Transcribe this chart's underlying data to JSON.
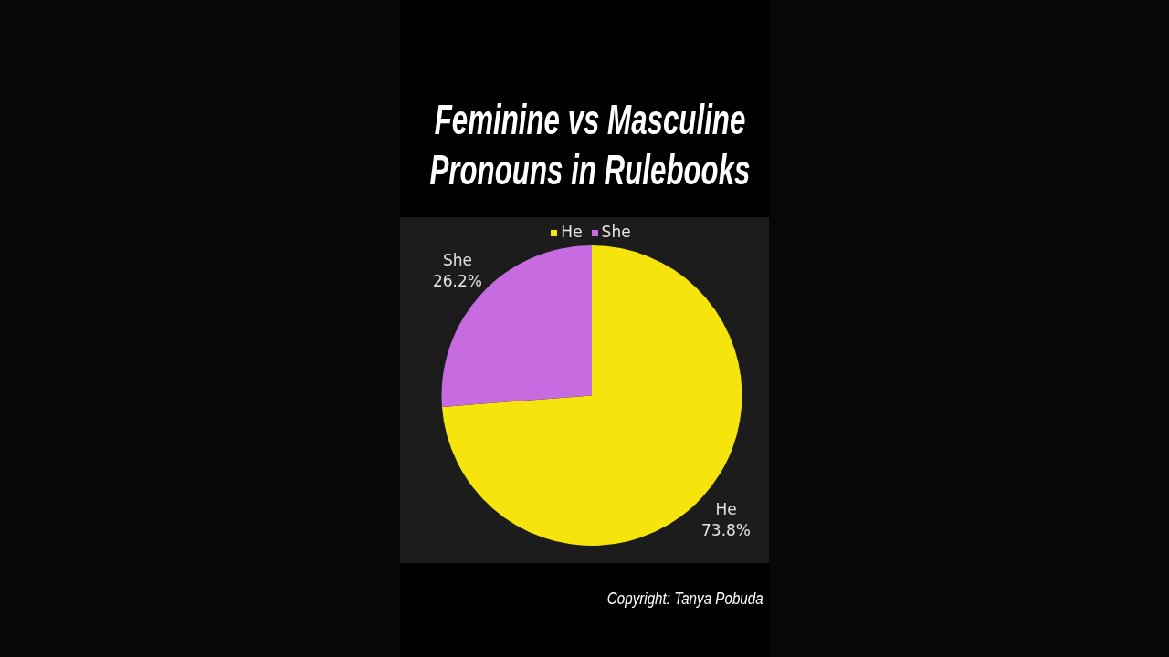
{
  "chart_data": {
    "type": "pie",
    "title": "Feminine vs Masculine Pronouns in Rulebooks",
    "categories": [
      "He",
      "She"
    ],
    "values": [
      73.8,
      26.2
    ],
    "colors": [
      "#f5e50c",
      "#c76be0"
    ],
    "value_labels": [
      "73.8%",
      "26.2%"
    ],
    "legend": "top",
    "annotations": [
      "Copyright: Tanya Pobuda"
    ]
  }
}
